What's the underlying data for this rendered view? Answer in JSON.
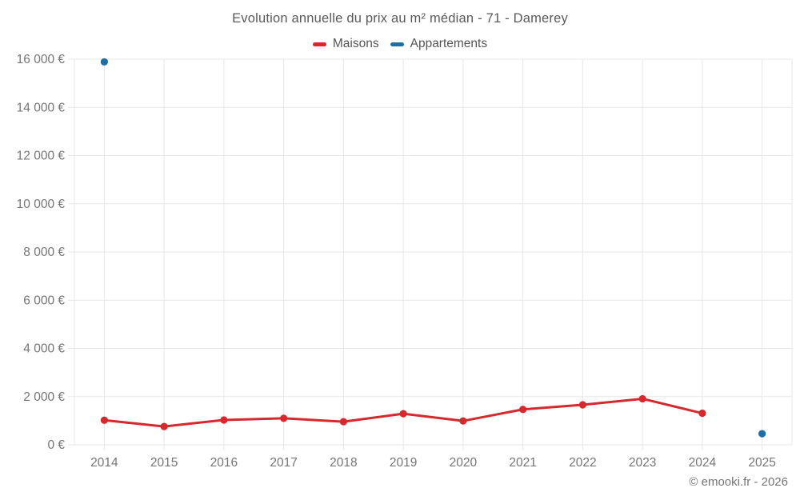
{
  "header": {
    "title": "Evolution annuelle du prix au m² médian - 71 - Damerey"
  },
  "footer": {
    "copyright": "© emooki.fr - 2026"
  },
  "colors": {
    "maisons_red": "#d7282d",
    "appartements_blue": "#1c6ea4",
    "grid": "#e7e7e7",
    "tick_text": "#757575",
    "title_text": "#595959"
  },
  "chart_data": {
    "type": "line",
    "title": "Evolution annuelle du prix au m² médian - 71 - Damerey",
    "categories": [
      "2014",
      "2015",
      "2016",
      "2017",
      "2018",
      "2019",
      "2020",
      "2021",
      "2022",
      "2023",
      "2024",
      "2025"
    ],
    "series": [
      {
        "name": "Maisons",
        "color": "#d7282d",
        "values": [
          1020,
          760,
          1030,
          1100,
          960,
          1290,
          990,
          1470,
          1660,
          1910,
          1310,
          null
        ]
      },
      {
        "name": "Appartements",
        "color": "#1c6ea4",
        "values": [
          15890,
          null,
          null,
          null,
          null,
          null,
          null,
          null,
          null,
          null,
          null,
          460
        ]
      }
    ],
    "xlabel": "",
    "ylabel": "",
    "ylim": [
      0,
      16000
    ],
    "grid": true,
    "legend_position": "top",
    "y_ticks": [
      {
        "value": 0,
        "label": "0 €"
      },
      {
        "value": 2000,
        "label": "2 000 €"
      },
      {
        "value": 4000,
        "label": "4 000 €"
      },
      {
        "value": 6000,
        "label": "6 000 €"
      },
      {
        "value": 8000,
        "label": "8 000 €"
      },
      {
        "value": 10000,
        "label": "10 000 €"
      },
      {
        "value": 12000,
        "label": "12 000 €"
      },
      {
        "value": 14000,
        "label": "14 000 €"
      },
      {
        "value": 16000,
        "label": "16 000 €"
      }
    ]
  }
}
